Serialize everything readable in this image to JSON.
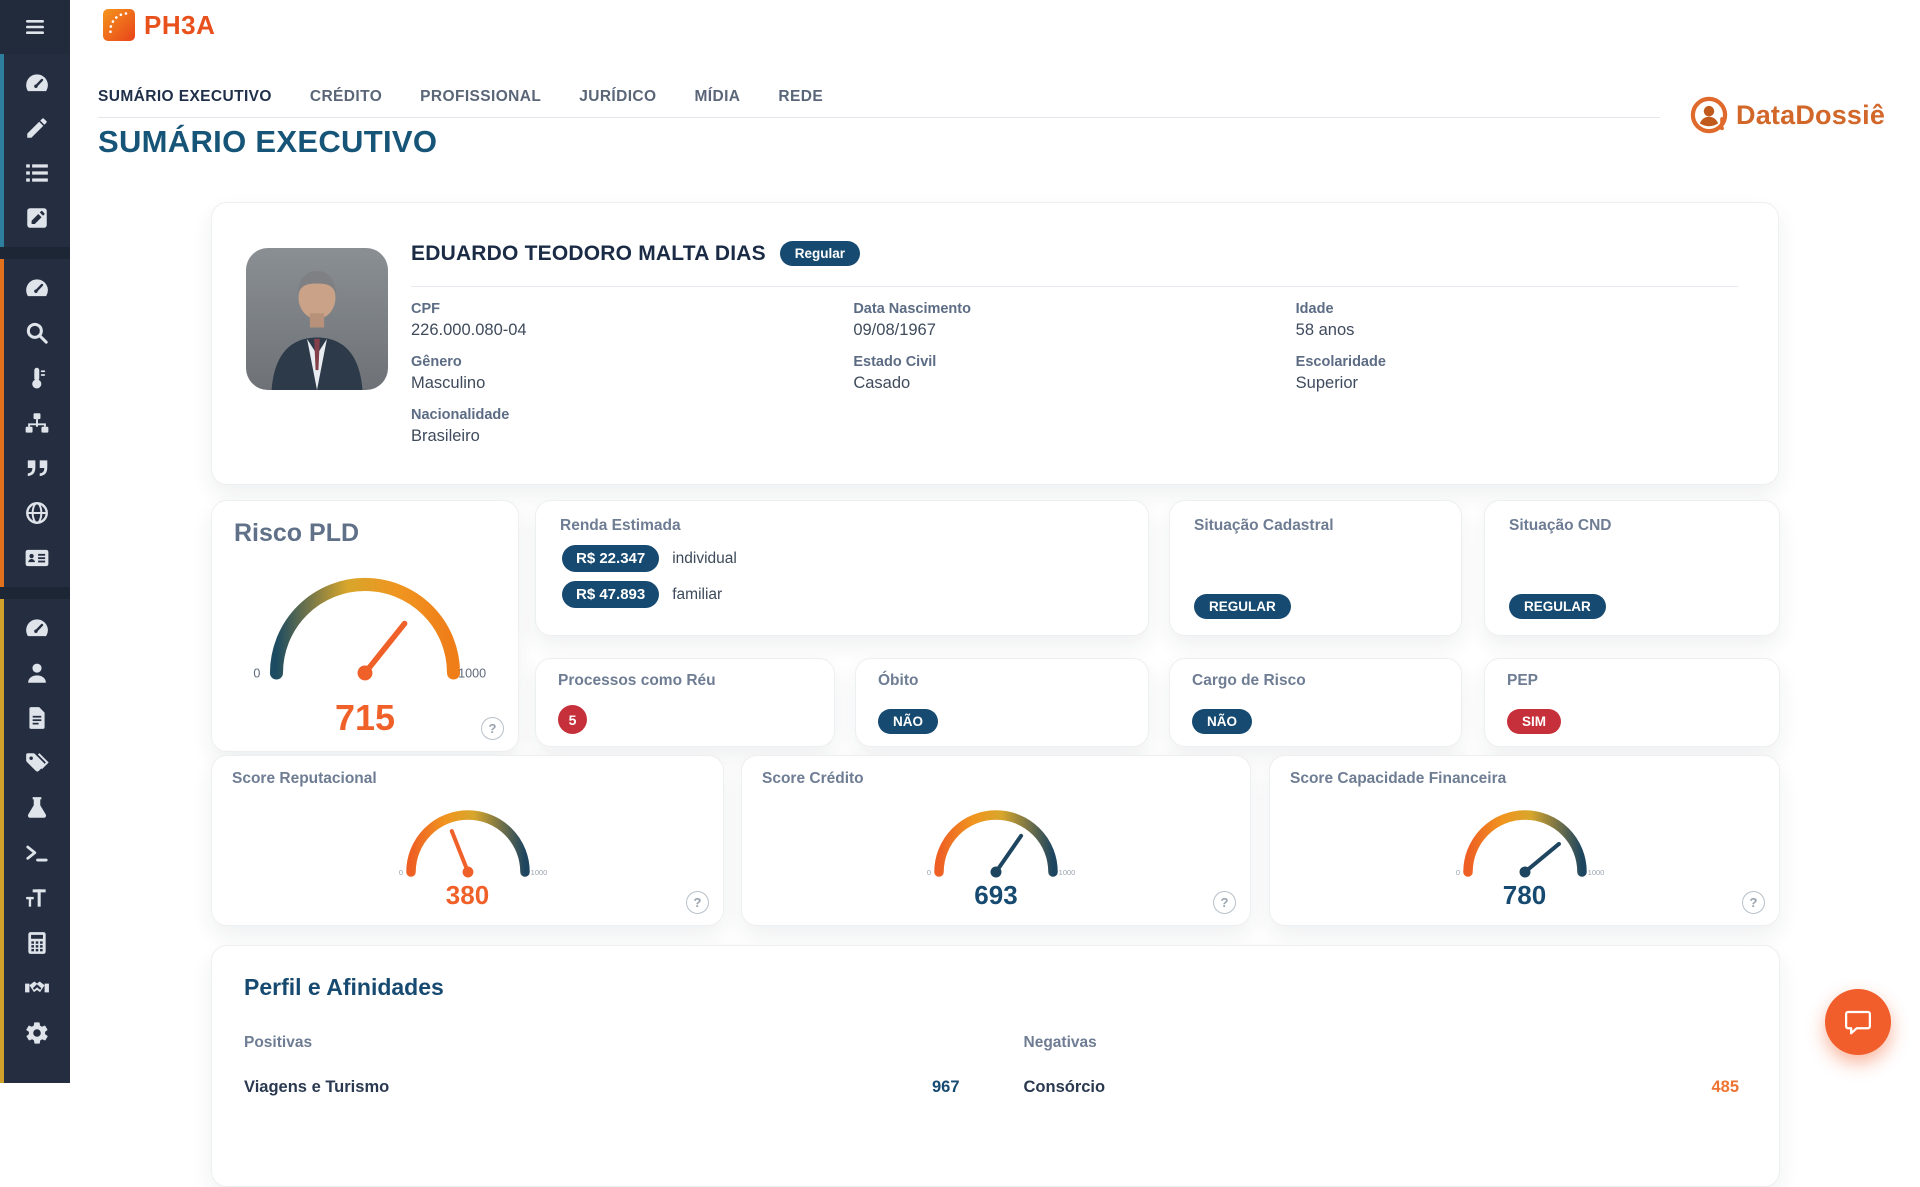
{
  "app": {
    "brand": "PH3A",
    "product": "DataDossiê"
  },
  "nav": {
    "tabs": [
      {
        "label": "SUMÁRIO EXECUTIVO",
        "active": true
      },
      {
        "label": "CRÉDITO",
        "active": false
      },
      {
        "label": "PROFISSIONAL",
        "active": false
      },
      {
        "label": "JURÍDICO",
        "active": false
      },
      {
        "label": "MÍDIA",
        "active": false
      },
      {
        "label": "REDE",
        "active": false
      }
    ]
  },
  "page": {
    "title": "SUMÁRIO EXECUTIVO"
  },
  "person": {
    "name": "EDUARDO TEODORO MALTA DIAS",
    "status_badge": "Regular",
    "fields": [
      {
        "label": "CPF",
        "value": "226.000.080-04"
      },
      {
        "label": "Data Nascimento",
        "value": "09/08/1967"
      },
      {
        "label": "Idade",
        "value": "58 anos"
      },
      {
        "label": "Gênero",
        "value": "Masculino"
      },
      {
        "label": "Estado Civil",
        "value": "Casado"
      },
      {
        "label": "Escolaridade",
        "value": "Superior"
      },
      {
        "label": "Nacionalidade",
        "value": "Brasileiro"
      }
    ]
  },
  "cards": {
    "risco_pld": {
      "title": "Risco PLD",
      "gauge": {
        "min": 0,
        "max": 1000,
        "value": 715,
        "min_label": "0",
        "max_label": "1000"
      }
    },
    "renda": {
      "title": "Renda Estimada",
      "items": [
        {
          "amount": "R$ 22.347",
          "label": "individual"
        },
        {
          "amount": "R$ 47.893",
          "label": "familiar"
        }
      ]
    },
    "situacao_cadastral": {
      "title": "Situação Cadastral",
      "badge": "REGULAR"
    },
    "situacao_cnd": {
      "title": "Situação CND",
      "badge": "REGULAR"
    },
    "processos_reu": {
      "title": "Processos como Réu",
      "count": "5"
    },
    "obito": {
      "title": "Óbito",
      "badge": "NÃO"
    },
    "cargo_risco": {
      "title": "Cargo de Risco",
      "badge": "NÃO"
    },
    "pep": {
      "title": "PEP",
      "badge": "SIM"
    }
  },
  "scores": [
    {
      "title": "Score Reputacional",
      "gauge": {
        "min": 0,
        "max": 1000,
        "value": 380,
        "min_label": "0",
        "max_label": "1000"
      }
    },
    {
      "title": "Score Crédito",
      "gauge": {
        "min": 0,
        "max": 1000,
        "value": 693,
        "min_label": "0",
        "max_label": "1000"
      }
    },
    {
      "title": "Score Capacidade Financeira",
      "gauge": {
        "min": 0,
        "max": 1000,
        "value": 780,
        "min_label": "0",
        "max_label": "1000"
      }
    }
  ],
  "perfil": {
    "title": "Perfil e Afinidades",
    "positivas_label": "Positivas",
    "negativas_label": "Negativas",
    "positivas": [
      {
        "label": "Viagens e Turismo",
        "value": "967"
      }
    ],
    "negativas": [
      {
        "label": "Consórcio",
        "value": "485"
      }
    ]
  },
  "icons": {
    "help": "?",
    "sidebar_groups": [
      {
        "accent": "#2e7e9e",
        "items": [
          "dashboard",
          "pencil",
          "list",
          "note-edit"
        ]
      },
      {
        "accent": "#e2711d",
        "items": [
          "dashboard",
          "search",
          "thermometer",
          "sitemap",
          "quotes",
          "globe",
          "id-card"
        ]
      },
      {
        "accent": "#cfa12b",
        "items": [
          "dashboard",
          "user",
          "document",
          "tags",
          "flask",
          "terminal",
          "text-size",
          "calculator",
          "handshake",
          "gear"
        ]
      }
    ]
  },
  "colors": {
    "navy": "#164a70",
    "red": "#c6303a",
    "value_orange": "#f0612a",
    "brand_orange": "#e8501c",
    "gauge_teal": "#1d4c62",
    "gauge_yellow": "#d8a62b",
    "gauge_orange": "#ef7d18"
  }
}
